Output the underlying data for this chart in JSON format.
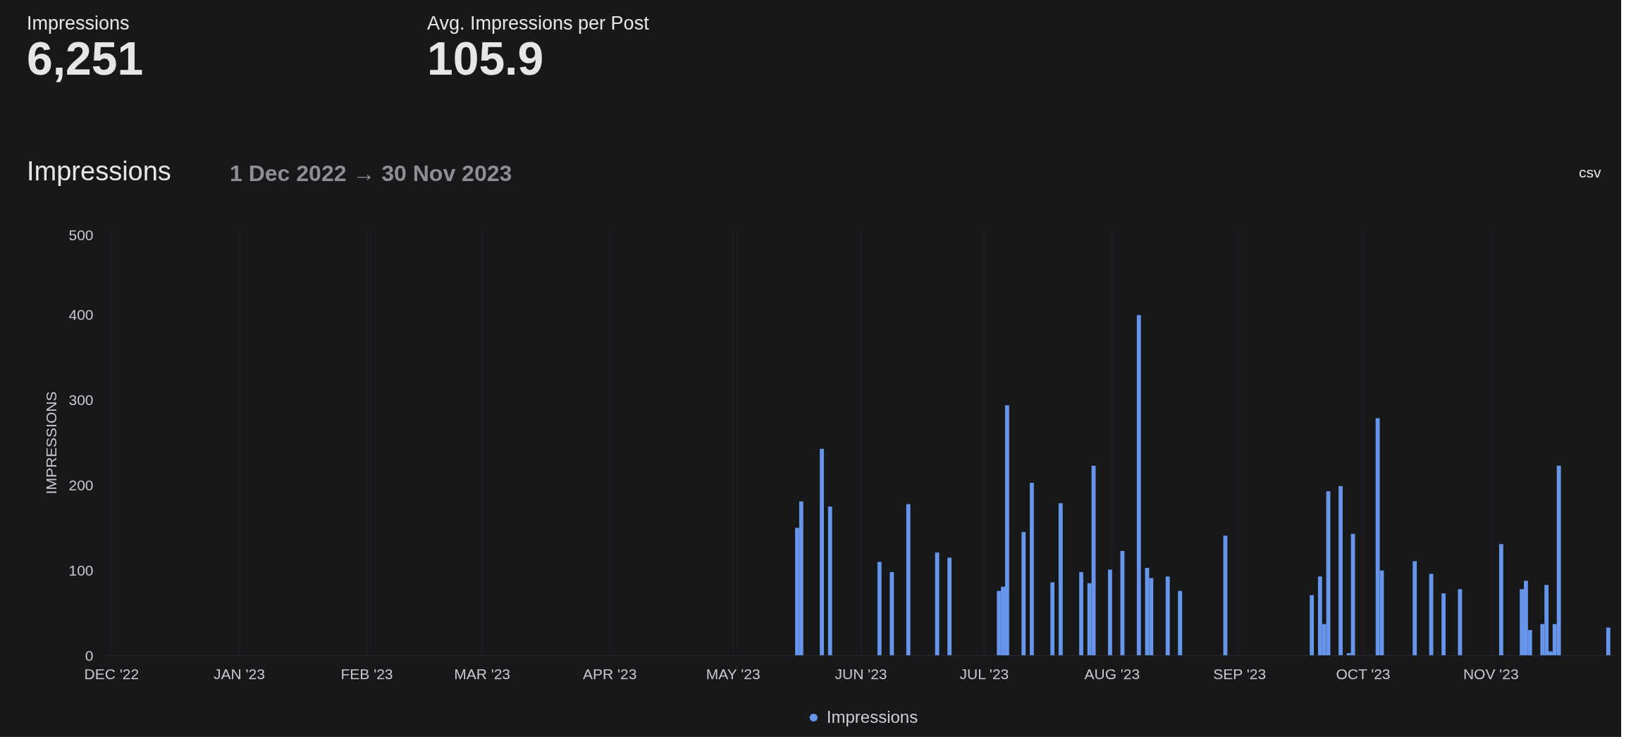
{
  "chart_data": {
    "type": "bar",
    "title": "Impressions",
    "subtitle": "1 Dec 2022 → 30 Nov 2023",
    "ylabel": "IMPRESSIONS",
    "annotations": [
      "Impressions",
      "6,251",
      "Avg. Impressions per Post",
      "105.9",
      "csv"
    ],
    "x": [
      "2023-05-16",
      "2023-05-17",
      "2023-05-22",
      "2023-05-24",
      "2023-06-05",
      "2023-06-08",
      "2023-06-12",
      "2023-06-19",
      "2023-06-22",
      "2023-07-04",
      "2023-07-05",
      "2023-07-06",
      "2023-07-10",
      "2023-07-12",
      "2023-07-17",
      "2023-07-19",
      "2023-07-24",
      "2023-07-26",
      "2023-07-27",
      "2023-07-31",
      "2023-08-03",
      "2023-08-07",
      "2023-08-09",
      "2023-08-10",
      "2023-08-14",
      "2023-08-17",
      "2023-08-28",
      "2023-09-18",
      "2023-09-20",
      "2023-09-21",
      "2023-09-22",
      "2023-09-25",
      "2023-09-27",
      "2023-09-28",
      "2023-10-04",
      "2023-10-05",
      "2023-10-13",
      "2023-10-17",
      "2023-10-20",
      "2023-10-24",
      "2023-11-03",
      "2023-11-08",
      "2023-11-09",
      "2023-11-10",
      "2023-11-13",
      "2023-11-14",
      "2023-11-15",
      "2023-11-16",
      "2023-11-17",
      "2023-11-29"
    ],
    "series": [
      {
        "name": "Impressions",
        "color": "#6695ea",
        "values": [
          150,
          181,
          243,
          175,
          110,
          98,
          178,
          121,
          115,
          76,
          81,
          294,
          145,
          203,
          86,
          179,
          98,
          85,
          223,
          101,
          123,
          400,
          103,
          91,
          93,
          76,
          141,
          71,
          93,
          37,
          193,
          199,
          3,
          143,
          279,
          100,
          111,
          96,
          73,
          78,
          131,
          78,
          88,
          30,
          37,
          83,
          5,
          37,
          223,
          33
        ]
      }
    ],
    "xlim": [
      "2022-11-30",
      "2023-12-01"
    ],
    "xticks": [
      {
        "value": "2022-12-01",
        "label": "DEC '22"
      },
      {
        "value": "2023-01-01",
        "label": "JAN '23"
      },
      {
        "value": "2023-02-01",
        "label": "FEB '23"
      },
      {
        "value": "2023-03-01",
        "label": "MAR '23"
      },
      {
        "value": "2023-04-01",
        "label": "APR '23"
      },
      {
        "value": "2023-05-01",
        "label": "MAY '23"
      },
      {
        "value": "2023-06-01",
        "label": "JUN '23"
      },
      {
        "value": "2023-07-01",
        "label": "JUL '23"
      },
      {
        "value": "2023-08-01",
        "label": "AUG '23"
      },
      {
        "value": "2023-09-01",
        "label": "SEP '23"
      },
      {
        "value": "2023-10-01",
        "label": "OCT '23"
      },
      {
        "value": "2023-11-01",
        "label": "NOV '23"
      }
    ],
    "ylim": [
      0,
      500
    ],
    "yticks": [
      0,
      100,
      200,
      300,
      400,
      500
    ],
    "grid": "x",
    "legend": "bottom"
  }
}
